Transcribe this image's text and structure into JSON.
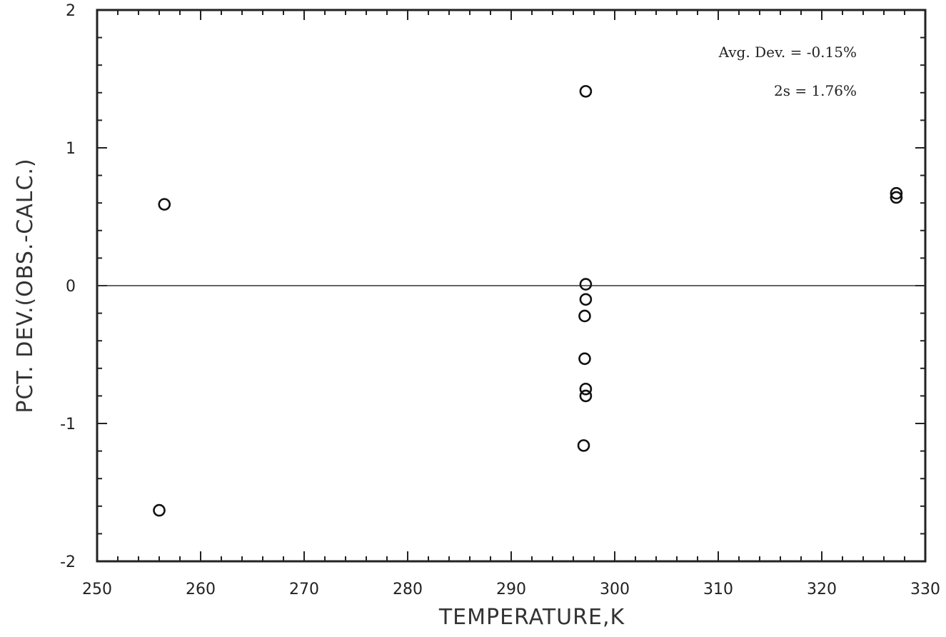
{
  "chart_data": {
    "type": "scatter",
    "xlabel": "TEMPERATURE,K",
    "ylabel": "PCT. DEV.(OBS.-CALC.)",
    "xlim": [
      250,
      330
    ],
    "ylim": [
      -2,
      2
    ],
    "x_ticks": [
      250,
      260,
      270,
      280,
      290,
      300,
      310,
      320,
      330
    ],
    "y_ticks": [
      -2,
      -1,
      0,
      1,
      2
    ],
    "grid": false,
    "reference_line_y": 0,
    "annotations": {
      "avg_dev": "Avg. Dev. = -0.15%",
      "two_s": "2s =  1.76%"
    },
    "series": [
      {
        "marker": "open-circle",
        "points": [
          [
            256.5,
            0.59
          ],
          [
            256.0,
            -1.63
          ],
          [
            297.2,
            1.41
          ],
          [
            297.2,
            0.01
          ],
          [
            297.2,
            -0.1
          ],
          [
            297.1,
            -0.22
          ],
          [
            297.1,
            -0.53
          ],
          [
            297.2,
            -0.75
          ],
          [
            297.2,
            -0.8
          ],
          [
            297.0,
            -1.16
          ],
          [
            327.2,
            0.67
          ],
          [
            327.2,
            0.64
          ]
        ]
      }
    ]
  }
}
